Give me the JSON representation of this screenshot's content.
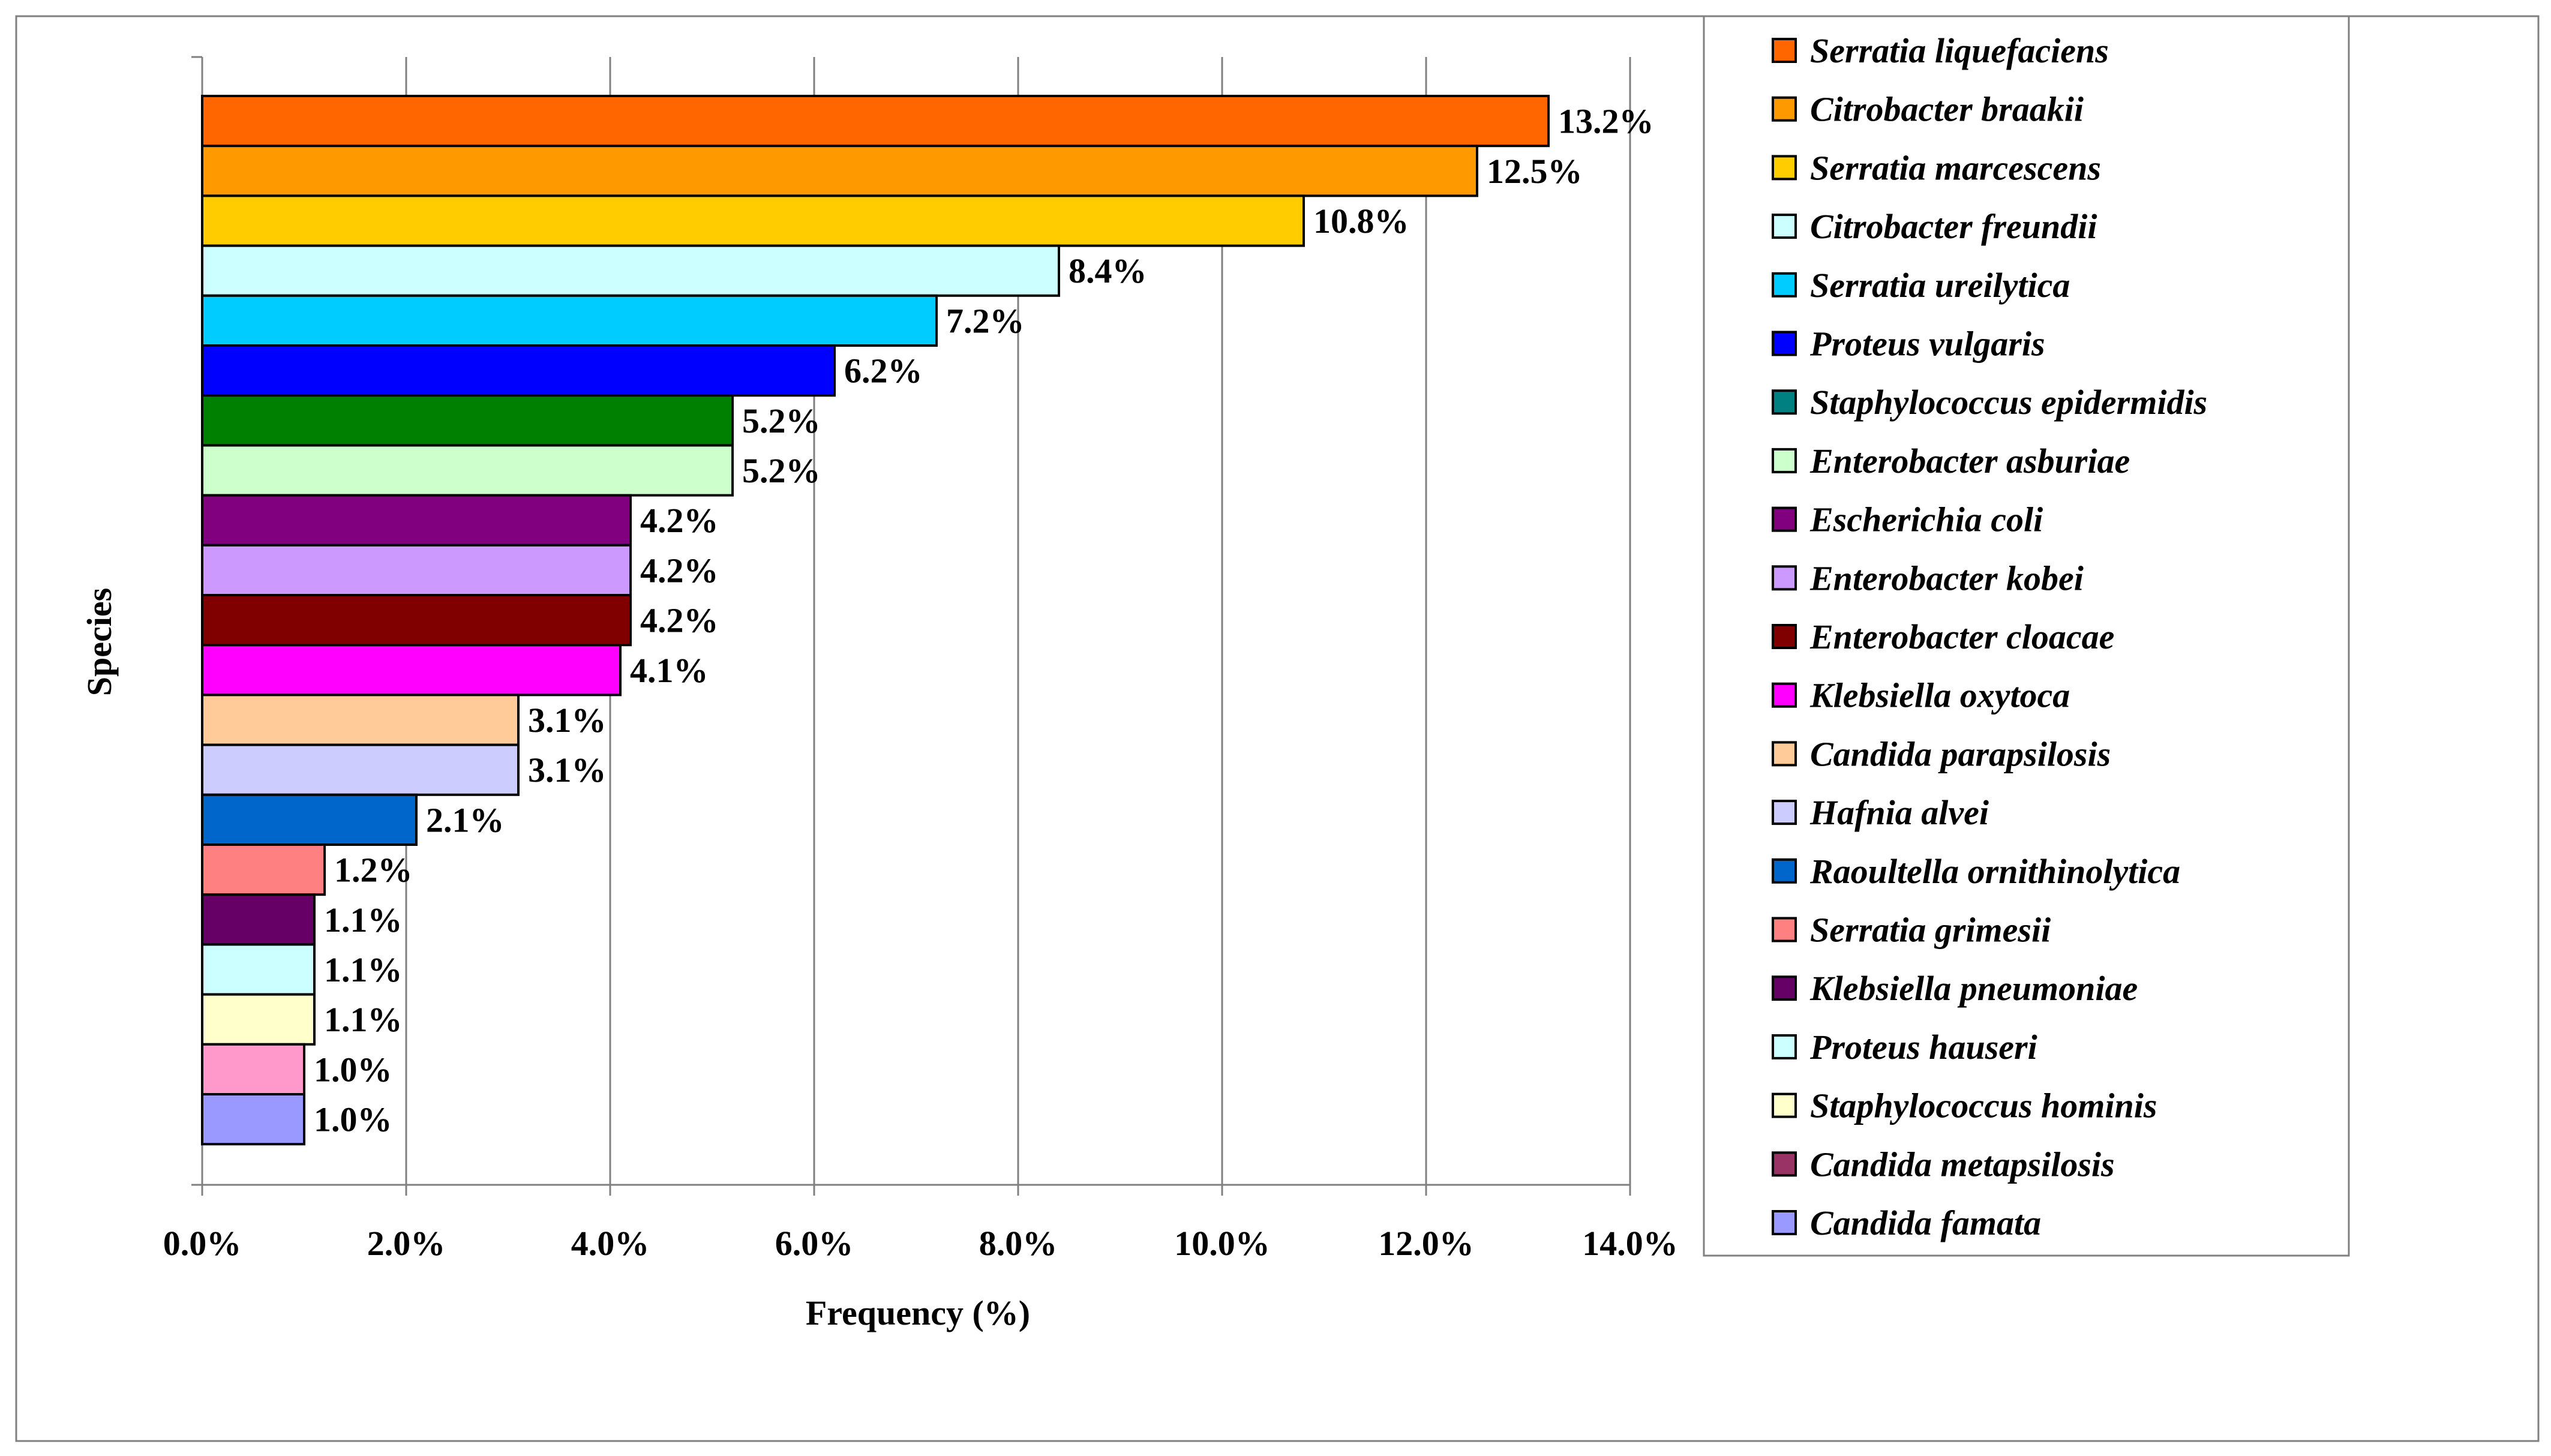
{
  "chart_data": {
    "type": "bar",
    "orientation": "horizontal",
    "xlabel": "Frequency (%)",
    "ylabel": "Species",
    "xlim": [
      0,
      14
    ],
    "xticks": [
      "0.0%",
      "2.0%",
      "4.0%",
      "6.0%",
      "8.0%",
      "10.0%",
      "12.0%",
      "14.0%"
    ],
    "grid": "vertical",
    "legend_position": "right",
    "categories": [
      "Serratia liquefaciens",
      "Citrobacter braakii",
      "Serratia marcescens",
      "Citrobacter freundii",
      "Serratia ureilytica",
      "Proteus vulgaris",
      "Staphylococcus epidermidis",
      "Enterobacter asburiae",
      "Escherichia coli",
      "Enterobacter kobei",
      "Enterobacter cloacae",
      "Klebsiella oxytoca",
      "Candida parapsilosis",
      "Hafnia alvei",
      "Raoultella ornithinolytica",
      "Serratia grimesii",
      "Klebsiella pneumoniae",
      "Proteus hauseri",
      "Staphylococcus hominis",
      "Candida metapsilosis",
      "Candida famata"
    ],
    "values": [
      13.2,
      12.5,
      10.8,
      8.4,
      7.2,
      6.2,
      5.2,
      5.2,
      4.2,
      4.2,
      4.2,
      4.1,
      3.1,
      3.1,
      2.1,
      1.2,
      1.1,
      1.1,
      1.1,
      1.0,
      1.0
    ],
    "value_labels": [
      "13.2%",
      "12.5%",
      "10.8%",
      "8.4%",
      "7.2%",
      "6.2%",
      "5.2%",
      "5.2%",
      "4.2%",
      "4.2%",
      "4.2%",
      "4.1%",
      "3.1%",
      "3.1%",
      "2.1%",
      "1.2%",
      "1.1%",
      "1.1%",
      "1.1%",
      "1.0%",
      "1.0%"
    ],
    "colors": [
      "#FF6600",
      "#FF9900",
      "#FFCC00",
      "#CCFFFF",
      "#00CCFF",
      "#0000FF",
      "#008000",
      "#CCFFCC",
      "#800080",
      "#CC99FF",
      "#800000",
      "#FF00FF",
      "#FFCC99",
      "#CCCCFF",
      "#0066CC",
      "#FF8080",
      "#660066",
      "#CCFFFF",
      "#FFFFCC",
      "#FF99CC",
      "#9999FF"
    ],
    "legend_colors": [
      "#FF6600",
      "#FF9900",
      "#FFCC00",
      "#CCFFFF",
      "#00CCFF",
      "#0000FF",
      "#008080",
      "#CCFFCC",
      "#800080",
      "#CC99FF",
      "#800000",
      "#FF00FF",
      "#FFCC99",
      "#CCCCFF",
      "#0066CC",
      "#FF8080",
      "#660066",
      "#CCFFFF",
      "#FFFFCC",
      "#993366",
      "#9999FF"
    ]
  }
}
